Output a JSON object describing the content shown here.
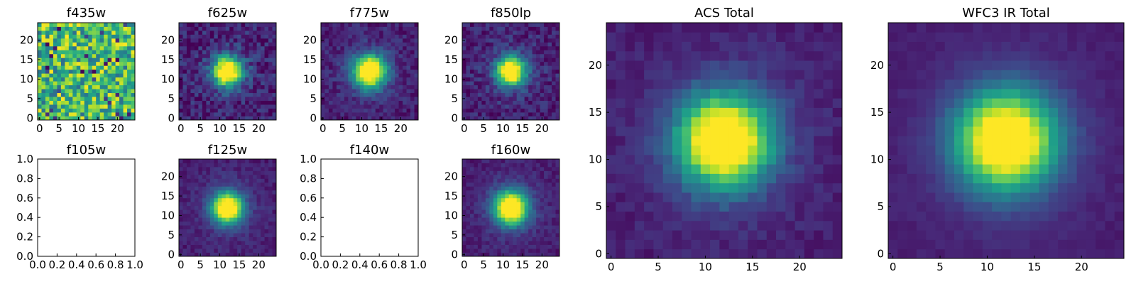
{
  "chart_data": [
    {
      "type": "heatmap",
      "title": "f435w",
      "pattern": "noise",
      "xticks": [
        0,
        5,
        10,
        15,
        20
      ],
      "yticks": [
        0,
        5,
        10,
        15,
        20
      ],
      "xlim": [
        -0.5,
        24.5
      ],
      "ylim": [
        -0.5,
        24.5
      ],
      "grid": false,
      "legend": "none"
    },
    {
      "type": "heatmap",
      "title": "f625w",
      "pattern": "source",
      "xticks": [
        0,
        5,
        10,
        15,
        20
      ],
      "yticks": [
        0,
        5,
        10,
        15,
        20
      ],
      "xlim": [
        -0.5,
        24.5
      ],
      "ylim": [
        -0.5,
        24.5
      ],
      "grid": false,
      "legend": "none"
    },
    {
      "type": "heatmap",
      "title": "f775w",
      "pattern": "source",
      "xticks": [
        0,
        5,
        10,
        15,
        20
      ],
      "yticks": [
        0,
        5,
        10,
        15,
        20
      ],
      "xlim": [
        -0.5,
        24.5
      ],
      "ylim": [
        -0.5,
        24.5
      ],
      "grid": false,
      "legend": "none"
    },
    {
      "type": "heatmap",
      "title": "f850lp",
      "pattern": "source",
      "xticks": [
        0,
        5,
        10,
        15,
        20
      ],
      "yticks": [
        0,
        5,
        10,
        15,
        20
      ],
      "xlim": [
        -0.5,
        24.5
      ],
      "ylim": [
        -0.5,
        24.5
      ],
      "grid": false,
      "legend": "none"
    },
    {
      "type": "empty",
      "title": "f105w",
      "xticks": [
        "0.0",
        "0.2",
        "0.4",
        "0.6",
        "0.8",
        "1.0"
      ],
      "yticks": [
        "0.0",
        "0.2",
        "0.4",
        "0.6",
        "0.8",
        "1.0"
      ],
      "xlim": [
        0,
        1
      ],
      "ylim": [
        0,
        1
      ]
    },
    {
      "type": "heatmap",
      "title": "f125w",
      "pattern": "source",
      "xticks": [
        0,
        5,
        10,
        15,
        20
      ],
      "yticks": [
        0,
        5,
        10,
        15,
        20
      ],
      "xlim": [
        -0.5,
        24.5
      ],
      "ylim": [
        -0.5,
        24.5
      ],
      "grid": false,
      "legend": "none"
    },
    {
      "type": "empty",
      "title": "f140w",
      "xticks": [
        "0.0",
        "0.2",
        "0.4",
        "0.6",
        "0.8",
        "1.0"
      ],
      "yticks": [
        "0.0",
        "0.2",
        "0.4",
        "0.6",
        "0.8",
        "1.0"
      ],
      "xlim": [
        0,
        1
      ],
      "ylim": [
        0,
        1
      ]
    },
    {
      "type": "heatmap",
      "title": "f160w",
      "pattern": "source",
      "xticks": [
        0,
        5,
        10,
        15,
        20
      ],
      "yticks": [
        0,
        5,
        10,
        15,
        20
      ],
      "xlim": [
        -0.5,
        24.5
      ],
      "ylim": [
        -0.5,
        24.5
      ],
      "grid": false,
      "legend": "none"
    },
    {
      "type": "heatmap",
      "title": "ACS Total",
      "pattern": "source",
      "xticks": [
        0,
        5,
        10,
        15,
        20
      ],
      "yticks": [
        0,
        5,
        10,
        15,
        20
      ],
      "xlim": [
        -0.5,
        24.5
      ],
      "ylim": [
        -0.5,
        24.5
      ],
      "grid": false,
      "legend": "none"
    },
    {
      "type": "heatmap",
      "title": "WFC3 IR Total",
      "pattern": "source",
      "xticks": [
        0,
        5,
        10,
        15,
        20
      ],
      "yticks": [
        0,
        5,
        10,
        15,
        20
      ],
      "xlim": [
        -0.5,
        24.5
      ],
      "ylim": [
        -0.5,
        24.5
      ],
      "grid": false,
      "legend": "none"
    }
  ],
  "colormap": [
    "#440154",
    "#482878",
    "#3e4989",
    "#31688e",
    "#26828e",
    "#1f9e89",
    "#35b779",
    "#6ece58",
    "#b5de2b",
    "#fde725"
  ]
}
